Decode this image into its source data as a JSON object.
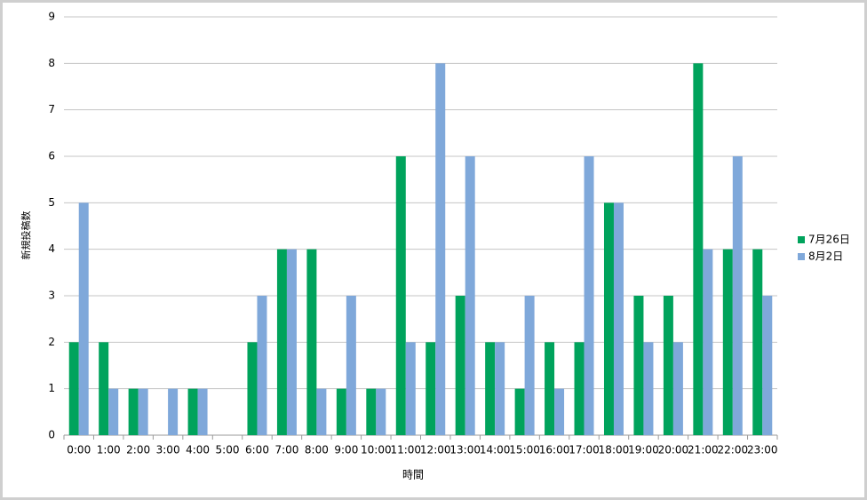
{
  "chart_data": {
    "type": "bar",
    "categories": [
      "0:00",
      "1:00",
      "2:00",
      "3:00",
      "4:00",
      "5:00",
      "6:00",
      "7:00",
      "8:00",
      "9:00",
      "10:00",
      "11:00",
      "12:00",
      "13:00",
      "14:00",
      "15:00",
      "16:00",
      "17:00",
      "18:00",
      "19:00",
      "20:00",
      "21:00",
      "22:00",
      "23:00"
    ],
    "series": [
      {
        "name": "7月26日",
        "color": "#00a35c",
        "values": [
          2,
          2,
          1,
          0,
          1,
          0,
          2,
          4,
          4,
          1,
          1,
          6,
          2,
          3,
          2,
          1,
          2,
          2,
          5,
          3,
          3,
          8,
          4,
          4
        ]
      },
      {
        "name": "8月2日",
        "color": "#7fa8da",
        "values": [
          5,
          1,
          1,
          1,
          1,
          0,
          3,
          4,
          1,
          3,
          1,
          2,
          8,
          6,
          2,
          3,
          1,
          6,
          5,
          2,
          2,
          4,
          6,
          3
        ]
      }
    ],
    "x_label": "時間",
    "y_label": "新規投稿数",
    "ylim": [
      0,
      9
    ],
    "yticks": [
      0,
      1,
      2,
      3,
      4,
      5,
      6,
      7,
      8,
      9
    ],
    "grid": true,
    "legend": "right"
  }
}
